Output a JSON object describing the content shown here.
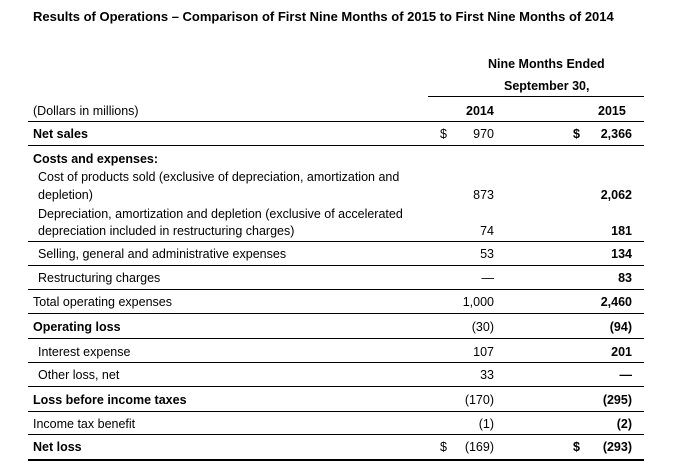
{
  "title": "Results of Operations – Comparison of First Nine Months of 2015 to First Nine Months of 2014",
  "header": {
    "period_line1": "Nine Months Ended",
    "period_line2": "September 30,",
    "units_label": "(Dollars in millions)",
    "year_2014": "2014",
    "year_2015": "2015"
  },
  "rows": {
    "net_sales": {
      "label": "Net sales",
      "dollar_2014": "$",
      "v2014": "970",
      "dollar_2015": "$",
      "v2015": "2,366"
    },
    "costs_header": {
      "label": "Costs and expenses:"
    },
    "cost_products": {
      "label_line1": "Cost of products sold (exclusive of depreciation, amortization and",
      "label_line2": "depletion)",
      "v2014": "873",
      "v2015": "2,062"
    },
    "depreciation": {
      "label_line1": "Depreciation, amortization and depletion (exclusive of accelerated",
      "label_line2": "depreciation included in restructuring charges)",
      "v2014": "74",
      "v2015": "181"
    },
    "sga": {
      "label": "Selling, general and administrative expenses",
      "v2014": "53",
      "v2015": "134"
    },
    "restructuring": {
      "label": "Restructuring charges",
      "v2014": "—",
      "v2015": "83"
    },
    "total_opex": {
      "label": "Total operating expenses",
      "v2014": "1,000",
      "v2015": "2,460"
    },
    "operating_loss": {
      "label": "Operating loss",
      "v2014": "(30)",
      "v2015": "(94)"
    },
    "interest": {
      "label": "Interest expense",
      "v2014": "107",
      "v2015": "201"
    },
    "other_loss": {
      "label": "Other loss, net",
      "v2014": "33",
      "v2015": "—"
    },
    "loss_before_tax": {
      "label": "Loss before income taxes",
      "v2014": "(170)",
      "v2015": "(295)"
    },
    "tax_benefit": {
      "label": "Income tax benefit",
      "v2014": "(1)",
      "v2015": "(2)"
    },
    "net_loss": {
      "label": "Net loss",
      "dollar_2014": "$",
      "v2014": "(169)",
      "dollar_2015": "$",
      "v2015": "(293)"
    }
  }
}
